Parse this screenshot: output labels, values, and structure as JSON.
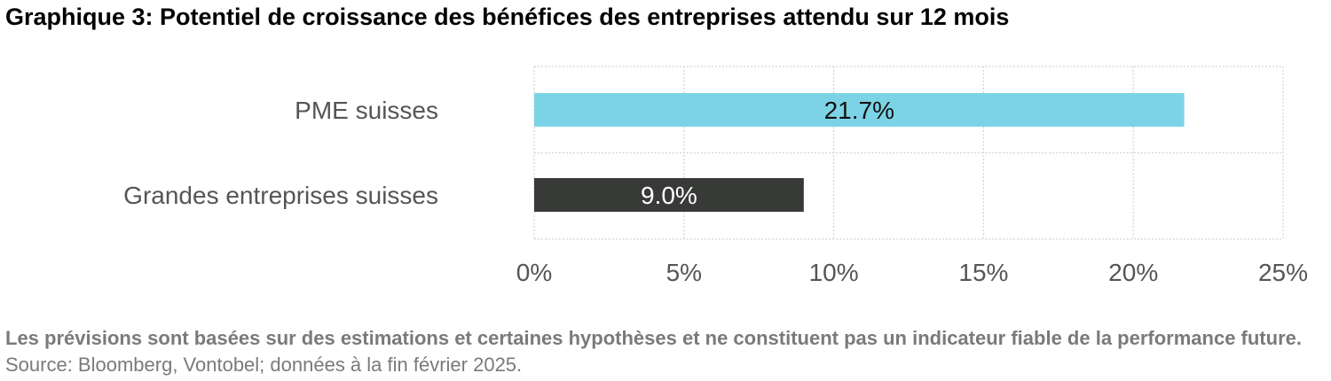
{
  "chart_data": {
    "type": "bar",
    "orientation": "horizontal",
    "title": "Graphique 3: Potentiel de croissance des bénéfices des entreprises attendu sur 12 mois",
    "categories": [
      "PME suisses",
      "Grandes entreprises suisses"
    ],
    "values": [
      21.7,
      9.0
    ],
    "value_labels": [
      "21.7%",
      "9.0%"
    ],
    "bar_colors": [
      "#7DD3E6",
      "#383A38"
    ],
    "value_label_colors": [
      "#111111",
      "#ffffff"
    ],
    "xlim": [
      0,
      25
    ],
    "x_ticks": [
      0,
      5,
      10,
      15,
      20,
      25
    ],
    "x_tick_labels": [
      "0%",
      "5%",
      "10%",
      "15%",
      "20%",
      "25%"
    ],
    "xlabel": "",
    "ylabel": "",
    "grid": true,
    "legend": "none"
  },
  "footnote": {
    "bold_text": "Les prévisions sont basées sur des estimations et certaines hypothèses et ne constituent pas un indicateur fiable de la performance future.",
    "source_text": " Source: Bloomberg, Vontobel; données à la fin février 2025."
  }
}
